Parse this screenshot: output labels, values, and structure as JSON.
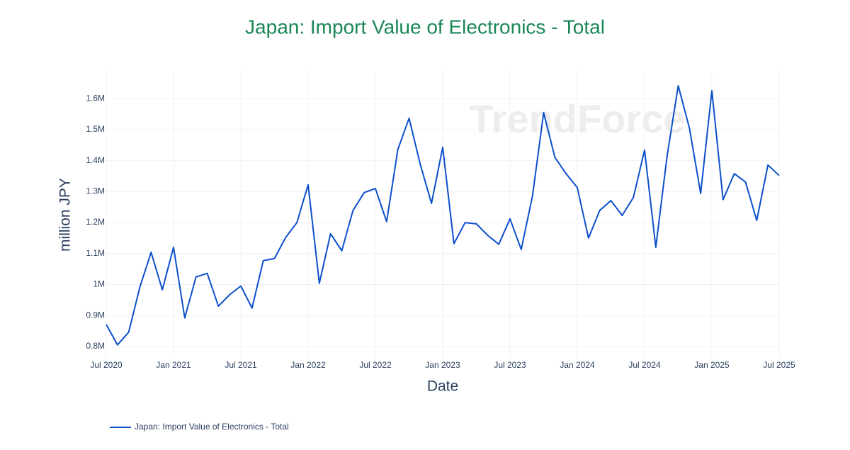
{
  "chart_data": {
    "type": "line",
    "title": "Japan: Import Value of Electronics - Total",
    "watermark": "TrendForce",
    "x_label": "Date",
    "y_label": "million JPY",
    "x": [
      "2020-07",
      "2020-08",
      "2020-09",
      "2020-10",
      "2020-11",
      "2020-12",
      "2021-01",
      "2021-02",
      "2021-03",
      "2021-04",
      "2021-05",
      "2021-06",
      "2021-07",
      "2021-08",
      "2021-09",
      "2021-10",
      "2021-11",
      "2021-12",
      "2022-01",
      "2022-02",
      "2022-03",
      "2022-04",
      "2022-05",
      "2022-06",
      "2022-07",
      "2022-08",
      "2022-09",
      "2022-10",
      "2022-11",
      "2022-12",
      "2023-01",
      "2023-02",
      "2023-03",
      "2023-04",
      "2023-05",
      "2023-06",
      "2023-07",
      "2023-08",
      "2023-09",
      "2023-10",
      "2023-11",
      "2023-12",
      "2024-01",
      "2024-02",
      "2024-03",
      "2024-04",
      "2024-05",
      "2024-06",
      "2024-07",
      "2024-08",
      "2024-09",
      "2024-10",
      "2024-11",
      "2024-12",
      "2025-01",
      "2025-02",
      "2025-03",
      "2025-04",
      "2025-05",
      "2025-06",
      "2025-07"
    ],
    "series": [
      {
        "name": "Japan: Import Value of Electronics - Total",
        "color": "#0b4fcc",
        "values": [
          871000,
          805000,
          846000,
          992000,
          1104000,
          983000,
          1120000,
          892000,
          1024000,
          1036000,
          930000,
          967000,
          995000,
          924000,
          1077000,
          1084000,
          1152000,
          1200000,
          1322000,
          1004000,
          1164000,
          1109000,
          1239000,
          1297000,
          1310000,
          1203000,
          1436000,
          1537000,
          1388000,
          1262000,
          1443000,
          1132000,
          1200000,
          1196000,
          1159000,
          1130000,
          1212000,
          1113000,
          1285000,
          1555000,
          1411000,
          1358000,
          1313000,
          1150000,
          1239000,
          1271000,
          1223000,
          1281000,
          1434000,
          1120000,
          1413000,
          1642000,
          1505000,
          1294000,
          1626000,
          1274000,
          1358000,
          1331000,
          1207000,
          1386000,
          1352000
        ]
      }
    ],
    "xlim": [
      "2020-07",
      "2025-07"
    ],
    "xticks": [
      {
        "value": "2020-07",
        "label": "Jul 2020"
      },
      {
        "value": "2021-01",
        "label": "Jan 2021"
      },
      {
        "value": "2021-07",
        "label": "Jul 2021"
      },
      {
        "value": "2022-01",
        "label": "Jan 2022"
      },
      {
        "value": "2022-07",
        "label": "Jul 2022"
      },
      {
        "value": "2023-01",
        "label": "Jan 2023"
      },
      {
        "value": "2023-07",
        "label": "Jul 2023"
      },
      {
        "value": "2024-01",
        "label": "Jan 2024"
      },
      {
        "value": "2024-07",
        "label": "Jul 2024"
      },
      {
        "value": "2025-01",
        "label": "Jan 2025"
      },
      {
        "value": "2025-07",
        "label": "Jul 2025"
      }
    ],
    "ylim": [
      763000,
      1690000
    ],
    "yticks": [
      {
        "value": 800000,
        "label": "0.8M"
      },
      {
        "value": 900000,
        "label": "0.9M"
      },
      {
        "value": 1000000,
        "label": "1M"
      },
      {
        "value": 1100000,
        "label": "1.1M"
      },
      {
        "value": 1200000,
        "label": "1.2M"
      },
      {
        "value": 1300000,
        "label": "1.3M"
      },
      {
        "value": 1400000,
        "label": "1.4M"
      },
      {
        "value": 1500000,
        "label": "1.5M"
      },
      {
        "value": 1600000,
        "label": "1.6M"
      }
    ],
    "grid": true,
    "legend": "bottom-left"
  }
}
